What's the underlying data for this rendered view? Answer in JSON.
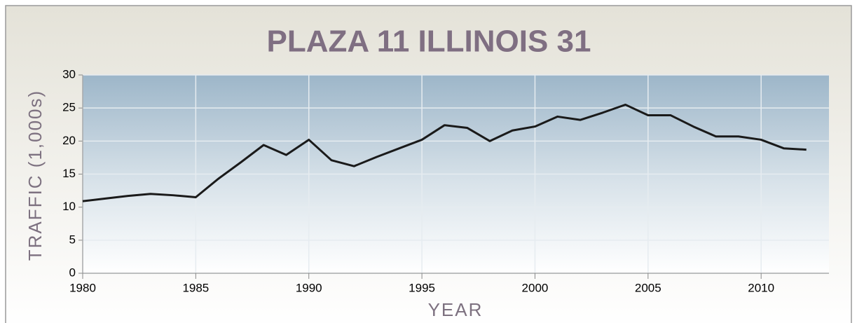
{
  "chart_data": {
    "type": "line",
    "title": "PLAZA 11 ILLINOIS 31",
    "x_label": "YEAR",
    "y_label": "TRAFFIC (1,000s)",
    "x": [
      1980,
      1981,
      1982,
      1983,
      1984,
      1985,
      1986,
      1987,
      1988,
      1989,
      1990,
      1991,
      1992,
      1993,
      1994,
      1995,
      1996,
      1997,
      1998,
      1999,
      2000,
      2001,
      2002,
      2003,
      2004,
      2005,
      2006,
      2007,
      2008,
      2009,
      2010,
      2011,
      2012
    ],
    "series": [
      {
        "name": "Traffic",
        "color": "#1a1a1a",
        "values": [
          10.9,
          11.3,
          11.7,
          12,
          11.8,
          11.5,
          14.3,
          16.8,
          19.4,
          17.9,
          20.2,
          17.1,
          16.2,
          17.6,
          18.9,
          20.2,
          22.4,
          22,
          20,
          21.6,
          22.2,
          23.7,
          23.2,
          24.3,
          25.5,
          23.9,
          23.9,
          22.2,
          20.7,
          20.7,
          20.2,
          18.9,
          18.7
        ]
      }
    ],
    "xlim": [
      1980,
      2013
    ],
    "xticks": [
      1980,
      1985,
      1990,
      1995,
      2000,
      2005,
      2010
    ],
    "ylim": [
      0,
      30
    ],
    "yticks": [
      0,
      5,
      10,
      15,
      20,
      25,
      30
    ],
    "grid": true
  }
}
